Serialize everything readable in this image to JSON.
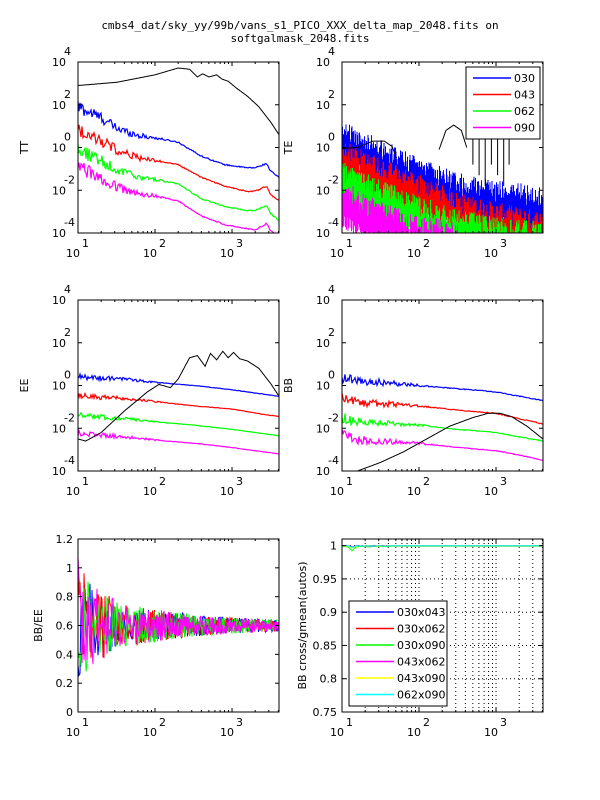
{
  "figure": {
    "title_line1": "cmbs4_dat/sky_yy/99b/vans_s1_PICO_XXX_delta_map_2048.fits on",
    "title_line2": "softgalmask_2048.fits"
  },
  "colors": {
    "030": "#0000ff",
    "043": "#ff0000",
    "062": "#00ff00",
    "090": "#ff00ff",
    "030x043": "#0000ff",
    "030x062": "#ff0000",
    "030x090": "#00ff00",
    "043x062": "#ff00ff",
    "043x090": "#ffff00",
    "062x090": "#00ffff",
    "theory": "#000000"
  },
  "chart_data": [
    {
      "id": "tt",
      "type": "line",
      "title": "",
      "xlabel": "",
      "ylabel": "TT",
      "xscale": "log",
      "yscale": "log",
      "xlim_log10": [
        1,
        3.61
      ],
      "ylim_log10": [
        -4,
        4
      ],
      "xticks": [
        {
          "base": "10",
          "exp": "1"
        },
        {
          "base": "10",
          "exp": "2"
        },
        {
          "base": "10",
          "exp": "3"
        }
      ],
      "yticks": [
        {
          "base": "10",
          "exp": "4"
        },
        {
          "base": "10",
          "exp": "2"
        },
        {
          "base": "10",
          "exp": "0"
        },
        {
          "base": "10",
          "exp": "-2"
        },
        {
          "base": "10",
          "exp": "-4"
        }
      ],
      "theory": {
        "name": "theory",
        "x_log10": [
          1,
          1.5,
          2,
          2.3,
          2.45,
          2.55,
          2.62,
          2.7,
          2.8,
          2.87,
          2.95,
          3.05,
          3.2,
          3.35,
          3.5,
          3.61
        ],
        "y_log10": [
          2.9,
          3.05,
          3.4,
          3.72,
          3.66,
          3.3,
          3.45,
          3.3,
          3.4,
          3.2,
          3.1,
          2.8,
          2.4,
          1.9,
          1.2,
          0.6
        ]
      },
      "series": [
        {
          "name": "030",
          "x_log10": [
            1,
            1.3,
            1.5,
            1.8,
            2.0,
            2.3,
            2.6,
            2.9,
            3.2,
            3.3,
            3.45,
            3.5,
            3.61
          ],
          "y_log10": [
            1.9,
            1.4,
            0.9,
            0.55,
            0.45,
            0.25,
            -0.4,
            -0.8,
            -0.95,
            -0.95,
            -0.75,
            -1.1,
            -1.4
          ],
          "noise": 0.35
        },
        {
          "name": "043",
          "x_log10": [
            1,
            1.3,
            1.5,
            1.8,
            2.0,
            2.3,
            2.6,
            2.9,
            3.2,
            3.3,
            3.45,
            3.5,
            3.61
          ],
          "y_log10": [
            0.9,
            0.3,
            -0.1,
            -0.5,
            -0.6,
            -0.8,
            -1.4,
            -1.8,
            -2.05,
            -2.05,
            -1.8,
            -2.2,
            -2.5
          ],
          "noise": 0.35
        },
        {
          "name": "062",
          "x_log10": [
            1,
            1.3,
            1.5,
            1.8,
            2.0,
            2.3,
            2.6,
            2.9,
            3.2,
            3.3,
            3.45,
            3.5,
            3.61
          ],
          "y_log10": [
            -0.1,
            -0.6,
            -1.05,
            -1.4,
            -1.5,
            -1.7,
            -2.4,
            -2.75,
            -2.95,
            -2.95,
            -2.7,
            -3.1,
            -3.4
          ],
          "noise": 0.35
        },
        {
          "name": "090",
          "x_log10": [
            1,
            1.3,
            1.5,
            1.8,
            2.0,
            2.3,
            2.6,
            2.9,
            3.2,
            3.3,
            3.45,
            3.5,
            3.61
          ],
          "y_log10": [
            -0.9,
            -1.45,
            -1.85,
            -2.2,
            -2.25,
            -2.5,
            -3.2,
            -3.6,
            -3.8,
            -3.85,
            -3.55,
            -3.9,
            -4.1
          ],
          "noise": 0.35
        }
      ]
    },
    {
      "id": "te",
      "type": "line",
      "title": "",
      "xlabel": "",
      "ylabel": "TE",
      "xscale": "log",
      "yscale": "log",
      "xlim_log10": [
        1,
        3.61
      ],
      "ylim_log10": [
        -4,
        4
      ],
      "xticks": [
        {
          "base": "10",
          "exp": "1"
        },
        {
          "base": "10",
          "exp": "2"
        },
        {
          "base": "10",
          "exp": "3"
        }
      ],
      "yticks": [
        {
          "base": "10",
          "exp": "4"
        },
        {
          "base": "10",
          "exp": "2"
        },
        {
          "base": "10",
          "exp": "0"
        },
        {
          "base": "10",
          "exp": "-2"
        },
        {
          "base": "10",
          "exp": "-4"
        }
      ],
      "legend": {
        "position": "top-right",
        "entries": [
          "030",
          "043",
          "062",
          "090"
        ]
      },
      "theory": {
        "name": "theory",
        "x_log10": [
          1,
          1.2,
          1.4,
          1.55,
          1.65,
          1.72
        ],
        "y_log10": [
          -0.05,
          0.0,
          0.3,
          0.3,
          0.05,
          -0.6
        ]
      },
      "theory_arc": {
        "x_log10": [
          2.26,
          2.35,
          2.45,
          2.55,
          2.62
        ],
        "y_log10": [
          -0.1,
          0.8,
          1.05,
          0.8,
          0.0
        ]
      },
      "theory_spikes_x_log10": [
        2.7,
        2.78,
        2.86,
        2.94,
        3.02,
        3.1,
        3.17
      ],
      "series": [
        {
          "name": "030",
          "x_log10": [
            1,
            1.3,
            1.6,
            2.0,
            2.5,
            3.0,
            3.3,
            3.61
          ],
          "y_log10": [
            0.8,
            0.2,
            -0.3,
            -1.0,
            -1.7,
            -2.1,
            -2.2,
            -2.4
          ],
          "noise": 0.9
        },
        {
          "name": "043",
          "x_log10": [
            1,
            1.3,
            1.6,
            2.0,
            2.5,
            3.0,
            3.3,
            3.61
          ],
          "y_log10": [
            -0.2,
            -0.7,
            -1.2,
            -1.8,
            -2.6,
            -3.1,
            -3.3,
            -3.5
          ],
          "noise": 0.9
        },
        {
          "name": "062",
          "x_log10": [
            1,
            1.3,
            1.6,
            2.0,
            2.5,
            3.0,
            3.3,
            3.61
          ],
          "y_log10": [
            -1.2,
            -1.7,
            -2.2,
            -2.8,
            -3.4,
            -3.8,
            -3.9,
            -4.0
          ],
          "noise": 0.9
        },
        {
          "name": "090",
          "x_log10": [
            1,
            1.3,
            1.6,
            2.0,
            2.5
          ],
          "y_log10": [
            -2.0,
            -2.7,
            -3.2,
            -3.7,
            -4.0
          ],
          "noise": 0.9
        }
      ]
    },
    {
      "id": "ee",
      "type": "line",
      "title": "",
      "xlabel": "",
      "ylabel": "EE",
      "xscale": "log",
      "yscale": "log",
      "xlim_log10": [
        1,
        3.61
      ],
      "ylim_log10": [
        -4,
        4
      ],
      "xticks": [
        {
          "base": "10",
          "exp": "1"
        },
        {
          "base": "10",
          "exp": "2"
        },
        {
          "base": "10",
          "exp": "3"
        }
      ],
      "yticks": [
        {
          "base": "10",
          "exp": "4"
        },
        {
          "base": "10",
          "exp": "2"
        },
        {
          "base": "10",
          "exp": "0"
        },
        {
          "base": "10",
          "exp": "-2"
        },
        {
          "base": "10",
          "exp": "-4"
        }
      ],
      "theory": {
        "name": "theory",
        "x_log10": [
          1,
          1.1,
          1.3,
          1.6,
          1.9,
          2.05,
          2.2,
          2.3,
          2.45,
          2.55,
          2.65,
          2.72,
          2.8,
          2.88,
          2.95,
          3.02,
          3.1,
          3.2,
          3.35,
          3.5,
          3.61
        ],
        "y_log10": [
          -2.5,
          -2.6,
          -2.2,
          -1.2,
          -0.3,
          0.05,
          -0.1,
          0.3,
          1.3,
          1.4,
          0.9,
          1.5,
          1.2,
          1.6,
          1.3,
          1.55,
          1.25,
          1.15,
          0.8,
          0.1,
          -0.5
        ]
      },
      "series": [
        {
          "name": "030",
          "x_log10": [
            1,
            1.6,
            2.0,
            2.5,
            3.0,
            3.4,
            3.61
          ],
          "y_log10": [
            0.4,
            0.3,
            0.15,
            0.0,
            -0.2,
            -0.4,
            -0.5
          ],
          "noise": 0.15
        },
        {
          "name": "043",
          "x_log10": [
            1,
            1.6,
            2.0,
            2.5,
            3.0,
            3.4,
            3.61
          ],
          "y_log10": [
            -0.5,
            -0.6,
            -0.75,
            -0.95,
            -1.1,
            -1.35,
            -1.45
          ],
          "noise": 0.15
        },
        {
          "name": "062",
          "x_log10": [
            1,
            1.6,
            2.0,
            2.5,
            3.0,
            3.4,
            3.61
          ],
          "y_log10": [
            -1.4,
            -1.55,
            -1.7,
            -1.85,
            -2.05,
            -2.25,
            -2.35
          ],
          "noise": 0.15
        },
        {
          "name": "090",
          "x_log10": [
            1,
            1.6,
            2.0,
            2.5,
            3.0,
            3.4,
            3.61
          ],
          "y_log10": [
            -2.25,
            -2.4,
            -2.55,
            -2.7,
            -2.9,
            -3.1,
            -3.2
          ],
          "noise": 0.15
        }
      ]
    },
    {
      "id": "bb",
      "type": "line",
      "title": "",
      "xlabel": "",
      "ylabel": "BB",
      "xscale": "log",
      "yscale": "log",
      "xlim_log10": [
        1,
        3.61
      ],
      "ylim_log10": [
        -4,
        4
      ],
      "xticks": [
        {
          "base": "10",
          "exp": "1"
        },
        {
          "base": "10",
          "exp": "2"
        },
        {
          "base": "10",
          "exp": "3"
        }
      ],
      "yticks": [
        {
          "base": "10",
          "exp": "4"
        },
        {
          "base": "10",
          "exp": "2"
        },
        {
          "base": "10",
          "exp": "0"
        },
        {
          "base": "10",
          "exp": "-2"
        },
        {
          "base": "10",
          "exp": "-4"
        }
      ],
      "theory": {
        "name": "theory",
        "x_log10": [
          1.2,
          1.5,
          1.8,
          2.1,
          2.4,
          2.7,
          2.9,
          3.05,
          3.2,
          3.4,
          3.61
        ],
        "y_log10": [
          -4.0,
          -3.6,
          -3.1,
          -2.5,
          -1.9,
          -1.5,
          -1.3,
          -1.3,
          -1.45,
          -1.9,
          -2.5
        ]
      },
      "series": [
        {
          "name": "030",
          "x_log10": [
            1,
            1.2,
            1.5,
            2.0,
            2.5,
            3.0,
            3.3,
            3.61
          ],
          "y_log10": [
            0.4,
            0.2,
            0.15,
            0.0,
            -0.15,
            -0.3,
            -0.5,
            -0.7
          ],
          "noise": 0.25
        },
        {
          "name": "043",
          "x_log10": [
            1,
            1.2,
            1.5,
            2.0,
            2.5,
            3.0,
            3.3,
            3.61
          ],
          "y_log10": [
            -0.6,
            -0.8,
            -0.85,
            -0.95,
            -1.15,
            -1.3,
            -1.55,
            -1.8
          ],
          "noise": 0.25
        },
        {
          "name": "062",
          "x_log10": [
            1,
            1.2,
            1.5,
            2.0,
            2.5,
            3.0,
            3.3,
            3.61
          ],
          "y_log10": [
            -1.5,
            -1.7,
            -1.75,
            -1.85,
            -2.05,
            -2.2,
            -2.4,
            -2.6
          ],
          "noise": 0.25
        },
        {
          "name": "090",
          "x_log10": [
            1,
            1.2,
            1.5,
            2.0,
            2.5,
            3.0,
            3.3,
            3.61
          ],
          "y_log10": [
            -2.3,
            -2.55,
            -2.6,
            -2.7,
            -2.9,
            -3.05,
            -3.25,
            -3.5
          ],
          "noise": 0.25
        }
      ]
    },
    {
      "id": "ratio",
      "type": "line",
      "title": "",
      "xlabel": "",
      "ylabel": "BB/EE",
      "xscale": "log",
      "yscale": "linear",
      "xlim_log10": [
        1,
        3.61
      ],
      "ylim": [
        0,
        1.2
      ],
      "xticks": [
        {
          "base": "10",
          "exp": "1"
        },
        {
          "base": "10",
          "exp": "2"
        },
        {
          "base": "10",
          "exp": "3"
        }
      ],
      "yticks": [
        {
          "value": 1.2,
          "label": "1.2"
        },
        {
          "value": 1,
          "label": "1"
        },
        {
          "value": 0.8,
          "label": "0.8"
        },
        {
          "value": 0.6,
          "label": "0.6"
        },
        {
          "value": 0.4,
          "label": "0.4"
        },
        {
          "value": 0.2,
          "label": "0.2"
        },
        {
          "value": 0,
          "label": "0"
        }
      ],
      "series": [
        {
          "name": "030",
          "mean": 0.6,
          "amp_at_l10": 0.6,
          "amp_at_lmax": 0.04
        },
        {
          "name": "043",
          "mean": 0.6,
          "amp_at_l10": 0.6,
          "amp_at_lmax": 0.04
        },
        {
          "name": "062",
          "mean": 0.6,
          "amp_at_l10": 0.6,
          "amp_at_lmax": 0.04
        },
        {
          "name": "090",
          "mean": 0.6,
          "amp_at_l10": 0.6,
          "amp_at_lmax": 0.04
        }
      ],
      "annotations": {
        "min_value": 0.25,
        "clipped_above": 1.2
      }
    },
    {
      "id": "cross",
      "type": "line",
      "title": "",
      "xlabel": "",
      "ylabel": "BB cross/gmean(autos)",
      "xscale": "log",
      "yscale": "linear",
      "xlim_log10": [
        1,
        3.61
      ],
      "ylim": [
        0.75,
        1.01
      ],
      "grid": true,
      "xticks": [
        {
          "base": "10",
          "exp": "1"
        },
        {
          "base": "10",
          "exp": "2"
        },
        {
          "base": "10",
          "exp": "3"
        }
      ],
      "yticks": [
        {
          "value": 1,
          "label": "1"
        },
        {
          "value": 0.95,
          "label": "0.95"
        },
        {
          "value": 0.9,
          "label": "0.9"
        },
        {
          "value": 0.85,
          "label": "0.85"
        },
        {
          "value": 0.8,
          "label": "0.8"
        },
        {
          "value": 0.75,
          "label": "0.75"
        }
      ],
      "legend": {
        "position": "bottom-left",
        "entries": [
          "030x043",
          "030x062",
          "030x090",
          "043x062",
          "043x090",
          "062x090"
        ]
      },
      "series": [
        {
          "name": "030x043",
          "value": 1.0,
          "dip_at_l13": 0.998
        },
        {
          "name": "030x062",
          "value": 1.0,
          "dip_at_l13": 0.998
        },
        {
          "name": "030x090",
          "value": 0.999,
          "dip_at_l13": 0.993
        },
        {
          "name": "043x062",
          "value": 1.0,
          "dip_at_l13": 0.999
        },
        {
          "name": "043x090",
          "value": 1.0,
          "dip_at_l13": 0.997
        },
        {
          "name": "062x090",
          "value": 1.0,
          "dip_at_l13": 0.998
        }
      ]
    }
  ]
}
